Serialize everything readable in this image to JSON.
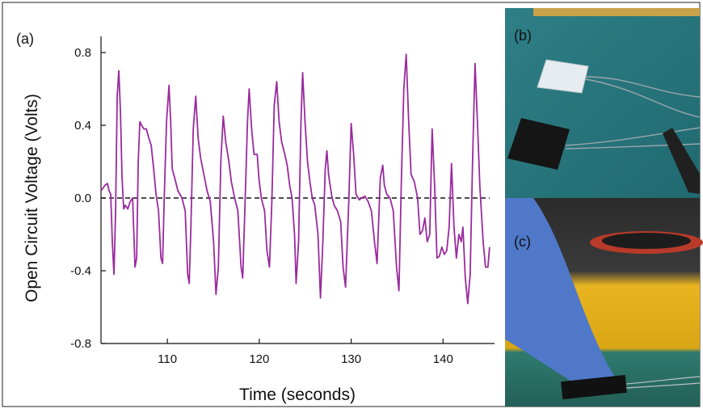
{
  "chart_data": {
    "type": "line",
    "annotation": "(a)",
    "xlabel": "Time (seconds)",
    "ylabel": "Open Circuit Voltage (Volts)",
    "xlim": [
      102.78,
      145.6
    ],
    "ylim": [
      -0.8,
      0.8
    ],
    "xticks": [
      110,
      120,
      130,
      140
    ],
    "yticks": [
      0.8,
      0.4,
      {
        "value": 0,
        "label": "0.0"
      },
      -0.4,
      -0.8
    ],
    "reference_line": 0,
    "series": [
      {
        "color": "#9a2a9e",
        "x": [
          102.78,
          103.22,
          103.48,
          103.66,
          103.84,
          104.01,
          104.19,
          104.37,
          104.54,
          104.72,
          104.9,
          105.07,
          105.25,
          105.42,
          105.69,
          105.95,
          106.22,
          106.48,
          106.66,
          106.83,
          107.01,
          107.19,
          107.45,
          107.71,
          107.98,
          108.24,
          108.51,
          108.77,
          109.04,
          109.3,
          109.48,
          109.65,
          109.91,
          110.18,
          110.36,
          110.53,
          110.8,
          111.15,
          111.59,
          111.94,
          112.21,
          112.38,
          112.56,
          112.82,
          113.09,
          113.35,
          113.62,
          113.97,
          114.32,
          114.67,
          115.03,
          115.29,
          115.55,
          115.82,
          116.08,
          116.35,
          116.7,
          116.96,
          117.32,
          117.67,
          118.02,
          118.2,
          118.46,
          118.72,
          118.9,
          119.17,
          119.43,
          119.78,
          119.96,
          120.22,
          120.58,
          120.84,
          121.11,
          121.37,
          121.63,
          121.9,
          122.16,
          122.43,
          122.78,
          123.04,
          123.31,
          123.57,
          123.84,
          124.01,
          124.28,
          124.54,
          124.72,
          124.98,
          125.25,
          125.51,
          125.77,
          126.04,
          126.39,
          126.66,
          126.92,
          127.18,
          127.36,
          127.54,
          127.89,
          128.15,
          128.5,
          128.86,
          129.12,
          129.39,
          129.74,
          130.0,
          130.27,
          130.53,
          130.88,
          131.14,
          131.5,
          131.85,
          132.2,
          132.56,
          132.82,
          133.17,
          133.44,
          133.61,
          133.88,
          134.23,
          134.58,
          134.94,
          135.2,
          135.47,
          135.73,
          135.99,
          136.26,
          136.52,
          136.87,
          137.23,
          137.49,
          137.76,
          138.02,
          138.28,
          138.55,
          138.81,
          139.08,
          139.34,
          139.6,
          139.87,
          140.13,
          140.4,
          140.66,
          140.92,
          141.19,
          141.45,
          141.72,
          141.98,
          142.16,
          142.42,
          142.69,
          142.95,
          143.21,
          143.48,
          143.74,
          144.0,
          144.36,
          144.62,
          144.88,
          145.06
        ],
        "values": [
          0.04,
          0.07,
          0.08,
          0.04,
          0.02,
          -0.24,
          -0.42,
          -0.07,
          0.56,
          0.7,
          0.47,
          0.11,
          -0.06,
          -0.04,
          -0.06,
          -0.02,
          0,
          -0.38,
          -0.33,
          0.2,
          0.42,
          0.4,
          0.38,
          0.38,
          0.33,
          0.29,
          0.16,
          0.02,
          -0.07,
          -0.33,
          -0.36,
          -0.02,
          0.42,
          0.62,
          0.42,
          0.16,
          0.11,
          0.04,
          0,
          -0.07,
          -0.42,
          -0.47,
          -0.16,
          0.38,
          0.56,
          0.33,
          0.22,
          0.13,
          0.04,
          -0.02,
          -0.24,
          -0.53,
          -0.38,
          0.2,
          0.45,
          0.31,
          0.2,
          0.09,
          0,
          -0.07,
          -0.38,
          -0.44,
          -0.02,
          0.42,
          0.6,
          0.38,
          0.24,
          0.24,
          0.11,
          0,
          -0.07,
          -0.29,
          -0.38,
          -0.02,
          0.51,
          0.64,
          0.42,
          0.31,
          0.24,
          0.18,
          0.07,
          0,
          -0.2,
          -0.47,
          -0.24,
          0.42,
          0.69,
          0.42,
          0.2,
          0.09,
          0,
          -0.04,
          -0.2,
          -0.55,
          -0.24,
          0.16,
          0.26,
          0.13,
          0.01,
          -0.04,
          -0.07,
          -0.13,
          -0.38,
          -0.49,
          -0.02,
          0.41,
          0.24,
          0.02,
          -0.01,
          0,
          0.01,
          -0.02,
          -0.07,
          -0.25,
          -0.36,
          0.11,
          0.18,
          0.07,
          0.02,
          0,
          -0.07,
          -0.38,
          -0.51,
          0.11,
          0.6,
          0.79,
          0.42,
          0.13,
          0.09,
          0,
          -0.2,
          -0.18,
          -0.11,
          -0.24,
          -0.2,
          0.38,
          0.07,
          -0.33,
          -0.32,
          -0.27,
          -0.31,
          -0.29,
          -0.16,
          0.19,
          -0.16,
          -0.33,
          -0.2,
          -0.24,
          -0.16,
          -0.44,
          -0.58,
          -0.42,
          0.2,
          0.74,
          0.42,
          0.07,
          -0.24,
          -0.38,
          -0.38,
          -0.27
        ]
      }
    ]
  },
  "photos": [
    {
      "label": "(b)"
    },
    {
      "label": "(c)"
    }
  ]
}
